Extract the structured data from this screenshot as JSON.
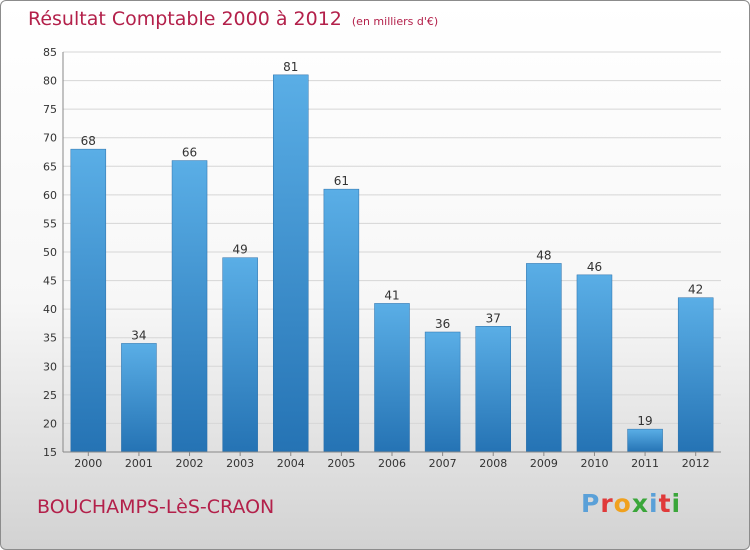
{
  "header": {
    "title": "Résultat Comptable 2000 à 2012",
    "subtitle": "(en milliers d'€)"
  },
  "footer": {
    "commune": "BOUCHAMPS-LèS-CRAON",
    "logo_letters": [
      "P",
      "r",
      "o",
      "x",
      "i",
      "t",
      "i"
    ]
  },
  "colors": {
    "title": "#b3204a",
    "bar_top": "#5aaee6",
    "bar_bottom": "#2573b4",
    "grid": "#d6d6d6",
    "logo": [
      "#5aa0d8",
      "#e03a3a",
      "#f0a11e",
      "#3aa63a",
      "#5aa0d8",
      "#e03a3a",
      "#3aa63a"
    ]
  },
  "chart_data": {
    "type": "bar",
    "title": "Résultat Comptable 2000 à 2012",
    "xlabel": "",
    "ylabel": "",
    "ylim": [
      15,
      85
    ],
    "yticks": [
      15,
      20,
      25,
      30,
      35,
      40,
      45,
      50,
      55,
      60,
      65,
      70,
      75,
      80,
      85
    ],
    "grid": true,
    "categories": [
      "2000",
      "2001",
      "2002",
      "2003",
      "2004",
      "2005",
      "2006",
      "2007",
      "2008",
      "2009",
      "2010",
      "2011",
      "2012"
    ],
    "values": [
      68,
      34,
      66,
      49,
      81,
      61,
      41,
      36,
      37,
      48,
      46,
      19,
      42
    ],
    "labels": [
      "68",
      "34",
      "66",
      "49",
      "81",
      "61",
      "41",
      "36",
      "37",
      "48",
      "46",
      "19",
      "42"
    ]
  }
}
